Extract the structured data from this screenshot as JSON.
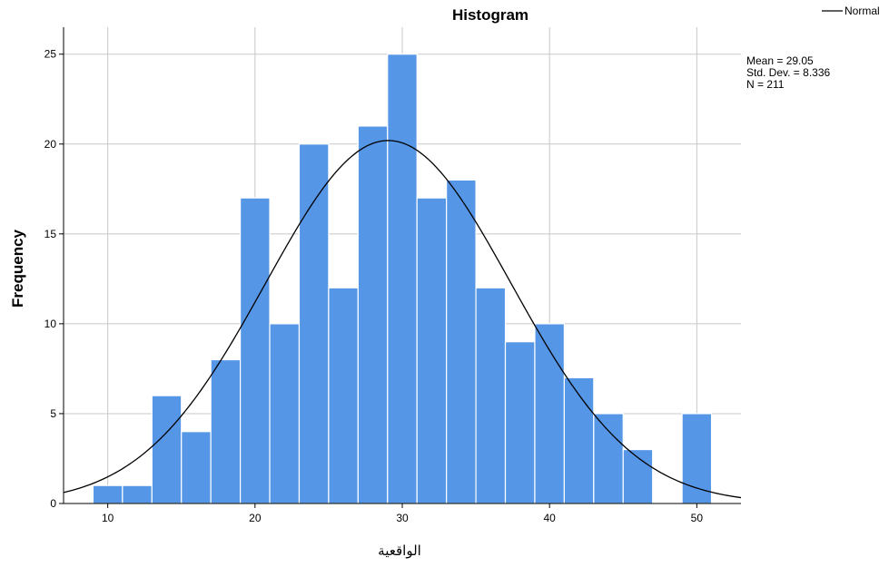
{
  "chart_data": {
    "type": "bar",
    "title": "Histogram",
    "xlabel": "الواقعية",
    "ylabel": "Frequency",
    "xlim": [
      7,
      53
    ],
    "ylim": [
      0,
      26.5
    ],
    "x_ticks": [
      10,
      20,
      30,
      40,
      50
    ],
    "y_ticks": [
      0,
      5,
      10,
      15,
      20,
      25
    ],
    "grid": true,
    "bins": [
      {
        "start": 9,
        "end": 11,
        "count": 1
      },
      {
        "start": 11,
        "end": 13,
        "count": 1
      },
      {
        "start": 13,
        "end": 15,
        "count": 6
      },
      {
        "start": 15,
        "end": 17,
        "count": 4
      },
      {
        "start": 17,
        "end": 19,
        "count": 8
      },
      {
        "start": 19,
        "end": 21,
        "count": 17
      },
      {
        "start": 21,
        "end": 23,
        "count": 10
      },
      {
        "start": 23,
        "end": 25,
        "count": 20
      },
      {
        "start": 25,
        "end": 27,
        "count": 12
      },
      {
        "start": 27,
        "end": 29,
        "count": 21
      },
      {
        "start": 29,
        "end": 31,
        "count": 25
      },
      {
        "start": 31,
        "end": 33,
        "count": 17
      },
      {
        "start": 33,
        "end": 35,
        "count": 18
      },
      {
        "start": 35,
        "end": 37,
        "count": 12
      },
      {
        "start": 37,
        "end": 39,
        "count": 9
      },
      {
        "start": 39,
        "end": 41,
        "count": 10
      },
      {
        "start": 41,
        "end": 43,
        "count": 7
      },
      {
        "start": 43,
        "end": 45,
        "count": 5
      },
      {
        "start": 45,
        "end": 47,
        "count": 3
      },
      {
        "start": 49,
        "end": 51,
        "count": 5
      }
    ],
    "bin_width": 2,
    "normal_curve": {
      "mean": 29.05,
      "std": 8.336,
      "n": 211
    },
    "stats_text": [
      "Mean = 29.05",
      "Std. Dev. = 8.336",
      "N = 211"
    ],
    "legend": {
      "entries": [
        "Normal"
      ],
      "position": "top-right"
    },
    "colors": {
      "bar": "#5596e6",
      "bar_stroke": "#ffffff",
      "curve": "#000000",
      "grid": "#c8c8c8",
      "axis": "#000000"
    }
  }
}
